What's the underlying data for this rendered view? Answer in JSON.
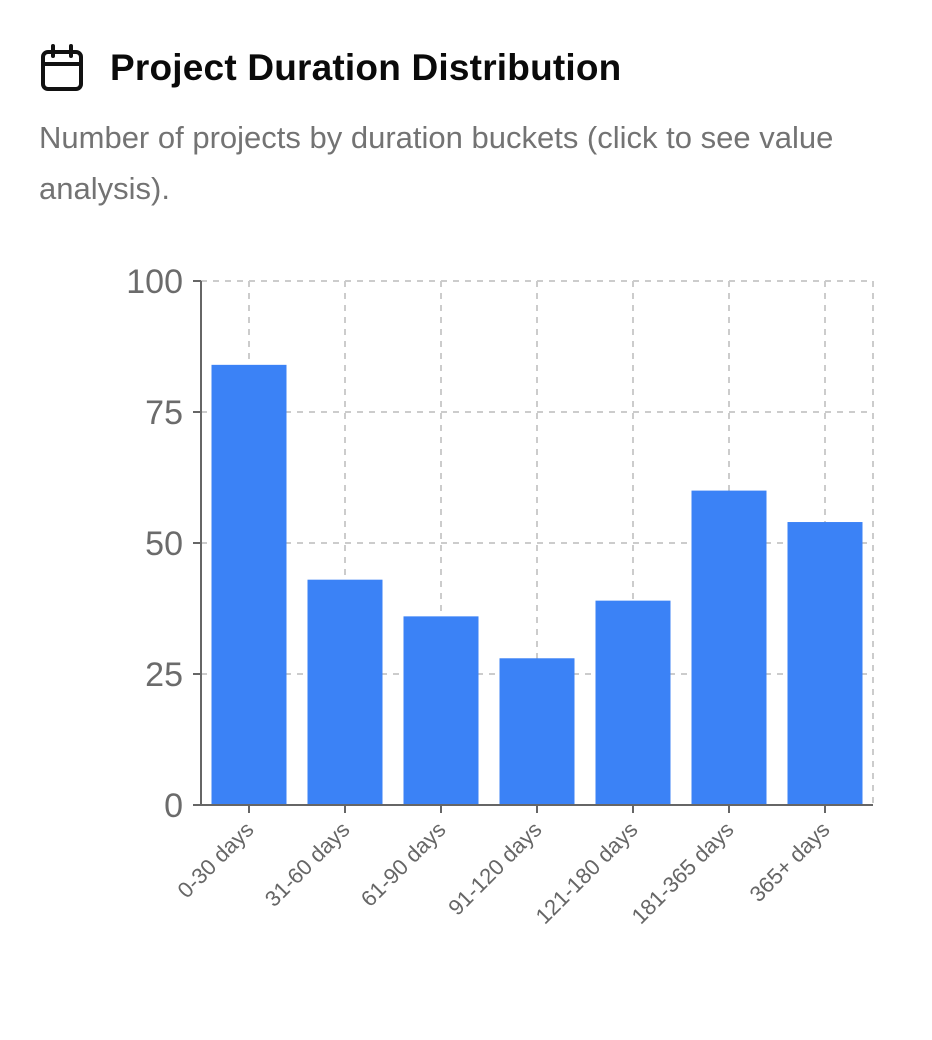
{
  "header": {
    "icon": "calendar-icon",
    "title": "Project Duration Distribution",
    "subtitle": "Number of projects by duration buckets (click to see value analysis)."
  },
  "colors": {
    "bar": "#3b82f6",
    "grid": "#cccccc",
    "axis": "#666666"
  },
  "chart_data": {
    "type": "bar",
    "categories": [
      "0-30 days",
      "31-60 days",
      "61-90 days",
      "91-120 days",
      "121-180 days",
      "181-365 days",
      "365+ days"
    ],
    "values": [
      84,
      43,
      36,
      28,
      39,
      60,
      54
    ],
    "title": "",
    "xlabel": "",
    "ylabel": "",
    "ylim": [
      0,
      100
    ],
    "yticks": [
      0,
      25,
      50,
      75,
      100
    ],
    "grid": true,
    "legend": "none"
  }
}
